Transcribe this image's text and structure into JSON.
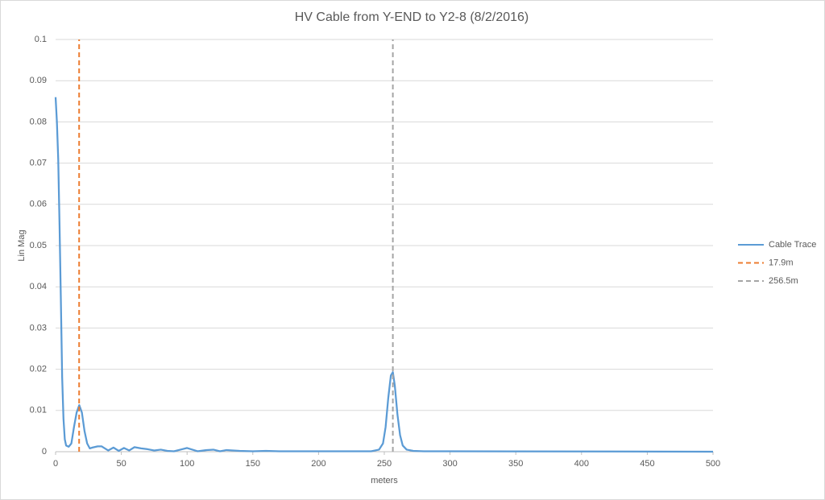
{
  "chart_data": {
    "type": "line",
    "title": "HV Cable from Y-END to Y2-8 (8/2/2016)",
    "xlabel": "meters",
    "ylabel": "Lin Mag",
    "xlim": [
      0,
      500
    ],
    "xticks": [
      0,
      50,
      100,
      150,
      200,
      250,
      300,
      350,
      400,
      450,
      500
    ],
    "ylim": [
      0,
      0.1
    ],
    "yticks": [
      0,
      0.01,
      0.02,
      0.03,
      0.04,
      0.05,
      0.06,
      0.07,
      0.08,
      0.09,
      0.1
    ],
    "grid": true,
    "legend": "right",
    "series": [
      {
        "name": "Cable Trace",
        "color": "#5b9bd5",
        "style": "solid",
        "x": [
          0,
          1,
          2,
          3,
          4,
          5,
          6,
          7,
          8,
          10,
          12,
          14,
          16,
          18,
          20,
          22,
          24,
          26,
          28,
          32,
          35,
          38,
          40,
          44,
          48,
          52,
          56,
          60,
          65,
          70,
          75,
          80,
          85,
          90,
          95,
          100,
          104,
          108,
          115,
          120,
          125,
          130,
          140,
          150,
          160,
          170,
          200,
          240,
          246,
          249,
          251,
          253,
          255,
          256.5,
          258,
          260,
          262,
          264,
          267,
          272,
          280,
          300,
          500
        ],
        "values": [
          0.086,
          0.08,
          0.071,
          0.055,
          0.037,
          0.018,
          0.008,
          0.003,
          0.0015,
          0.0012,
          0.002,
          0.006,
          0.0095,
          0.0113,
          0.0095,
          0.005,
          0.002,
          0.0008,
          0.001,
          0.0013,
          0.0013,
          0.0007,
          0.0003,
          0.001,
          0.0002,
          0.0009,
          0.0003,
          0.0011,
          0.0008,
          0.0006,
          0.0003,
          0.0005,
          0.0002,
          0.0001,
          0.0005,
          0.0009,
          0.0005,
          0.0001,
          0.0004,
          0.0005,
          0.0001,
          0.0004,
          0.0002,
          0.0001,
          0.0002,
          0.0001,
          0.0001,
          0.0001,
          0.0005,
          0.002,
          0.006,
          0.013,
          0.0185,
          0.0193,
          0.016,
          0.009,
          0.004,
          0.0015,
          0.0005,
          0.0002,
          0.0001,
          0.0001,
          0
        ]
      },
      {
        "name": "17.9m",
        "color": "#ed7d31",
        "style": "dashed",
        "x": [
          17.9,
          17.9
        ],
        "values": [
          0,
          0.1
        ]
      },
      {
        "name": "256.5m",
        "color": "#a5a5a5",
        "style": "dashed",
        "x": [
          256.5,
          256.5
        ],
        "values": [
          0,
          0.1
        ]
      }
    ]
  }
}
